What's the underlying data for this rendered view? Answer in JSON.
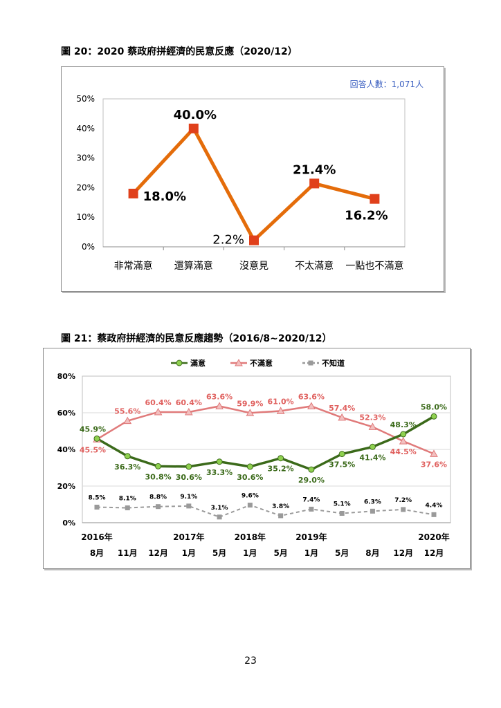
{
  "figure20": {
    "caption": "圖 20：2020 蔡政府拼經濟的民意反應（2020/12）",
    "respondents": "回答人數：1,071人"
  },
  "figure21": {
    "caption": "圖 21：蔡政府拼經濟的民意反應趨勢（2016/8~2020/12）"
  },
  "page_number": "23",
  "colors": {
    "fig20_line": "#E46C0A",
    "fig20_marker": "#E0401B",
    "satisfied": "#3B6A1A",
    "satisfied_marker": "#8FD14F",
    "dissatisfied": "#E07A7A",
    "unknown": "#9A9A9A",
    "respondents_text": "#3B5FC0"
  },
  "chart_data": [
    {
      "type": "line",
      "categories": [
        "非常滿意",
        "還算滿意",
        "沒意見",
        "不太滿意",
        "一點也不滿意"
      ],
      "values": [
        18.0,
        40.0,
        2.2,
        21.4,
        16.2
      ],
      "data_labels": [
        "18.0%",
        "40.0%",
        "2.2%",
        "21.4%",
        "16.2%"
      ],
      "yticks": [
        "0%",
        "10%",
        "20%",
        "30%",
        "40%",
        "50%"
      ],
      "ylim": [
        0,
        50
      ],
      "grid": false
    },
    {
      "type": "line",
      "categories": [
        "8月",
        "11月",
        "12月",
        "1月",
        "5月",
        "1月",
        "5月",
        "1月",
        "5月",
        "8月",
        "12月",
        "12月"
      ],
      "year_labels": [
        {
          "index": 0,
          "text": "2016年"
        },
        {
          "index": 3,
          "text": "2017年"
        },
        {
          "index": 5,
          "text": "2018年"
        },
        {
          "index": 7,
          "text": "2019年"
        },
        {
          "index": 11,
          "text": "2020年"
        }
      ],
      "yticks": [
        "0%",
        "20%",
        "40%",
        "60%",
        "80%"
      ],
      "ylim": [
        0,
        80
      ],
      "legend_position": "top",
      "series": [
        {
          "name": "滿意",
          "values": [
            45.9,
            36.3,
            30.8,
            30.6,
            33.3,
            30.6,
            35.2,
            29.0,
            37.5,
            41.4,
            48.3,
            58.0
          ],
          "labels": [
            "45.9%",
            "36.3%",
            "30.8%",
            "30.6%",
            "33.3%",
            "30.6%",
            "35.2%",
            "29.0%",
            "37.5%",
            "41.4%",
            "48.3%",
            "58.0%"
          ]
        },
        {
          "name": "不滿意",
          "values": [
            45.5,
            55.6,
            60.4,
            60.4,
            63.6,
            59.9,
            61.0,
            63.6,
            57.4,
            52.3,
            44.5,
            37.6
          ],
          "labels": [
            "45.5%",
            "55.6%",
            "60.4%",
            "60.4%",
            "63.6%",
            "59.9%",
            "61.0%",
            "63.6%",
            "57.4%",
            "52.3%",
            "44.5%",
            "37.6%"
          ]
        },
        {
          "name": "不知道",
          "values": [
            8.5,
            8.1,
            8.8,
            9.1,
            3.1,
            9.6,
            3.8,
            7.4,
            5.1,
            6.3,
            7.2,
            4.4
          ],
          "labels": [
            "8.5%",
            "8.1%",
            "8.8%",
            "9.1%",
            "3.1%",
            "9.6%",
            "3.8%",
            "7.4%",
            "5.1%",
            "6.3%",
            "7.2%",
            "4.4%"
          ]
        }
      ]
    }
  ]
}
